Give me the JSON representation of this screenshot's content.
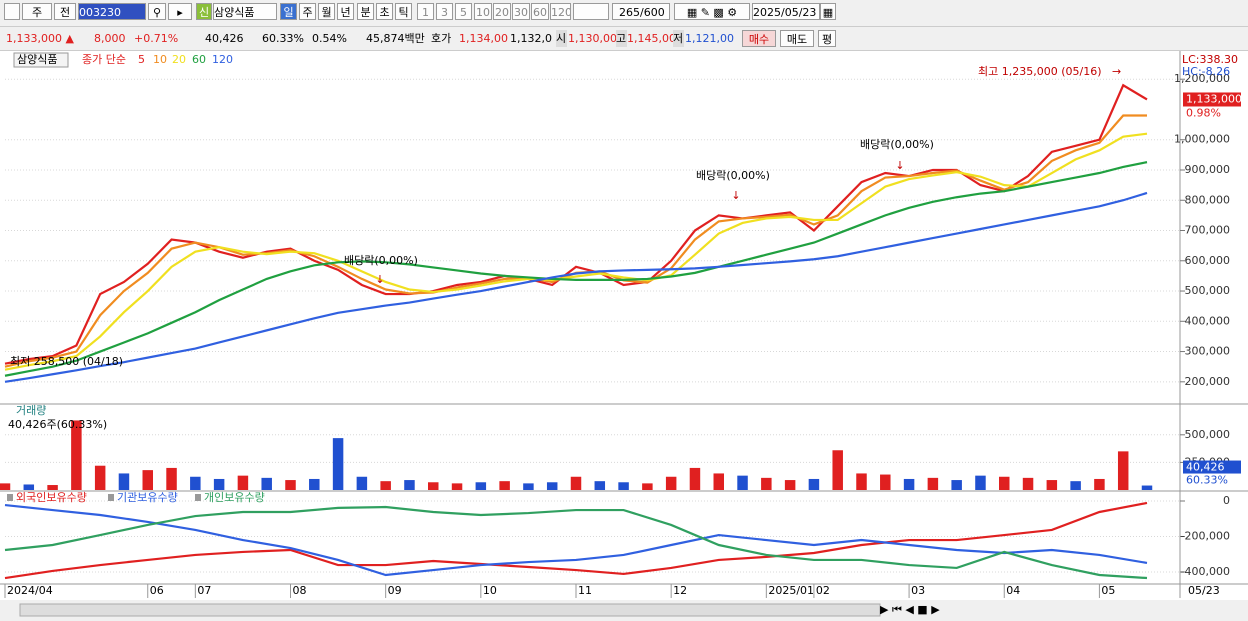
{
  "toolbar": {
    "items": [
      "주",
      "전",
      "003230",
      "신",
      "삼양식품",
      "일",
      "주",
      "월",
      "년",
      "분",
      "초",
      "틱",
      "1",
      "3",
      "5",
      "10",
      "20",
      "30",
      "60",
      "120",
      "265",
      "/600",
      "2025/05/23"
    ]
  },
  "info_bar": {
    "items": [
      "1,133,000 ▲",
      "8,000",
      "+0.71%",
      "40,426",
      "60.33%",
      "0.54%",
      "45,874백만",
      "호가",
      "1,134,00",
      "1,132,0",
      "시",
      "1,130,00",
      "고",
      "1,145,00",
      "저",
      "1,121,00",
      "매수",
      "매도",
      "평"
    ]
  },
  "chart_data": [
    {
      "type": "line",
      "title": "삼양식품",
      "subtitle": "종가 단순",
      "series": [
        {
          "name": "5",
          "color": "#e02020",
          "values": [
            260000,
            275000,
            285000,
            320000,
            490000,
            530000,
            590000,
            670000,
            660000,
            630000,
            610000,
            630000,
            640000,
            600000,
            570000,
            520000,
            490000,
            490000,
            500000,
            520000,
            530000,
            550000,
            540000,
            520000,
            580000,
            560000,
            520000,
            530000,
            600000,
            700000,
            750000,
            740000,
            750000,
            760000,
            700000,
            780000,
            860000,
            890000,
            880000,
            900000,
            900000,
            850000,
            830000,
            880000,
            960000,
            980000,
            1000000,
            1180000,
            1133000
          ]
        },
        {
          "name": "10",
          "color": "#f08c20",
          "values": [
            250000,
            268000,
            280000,
            300000,
            420000,
            500000,
            560000,
            640000,
            660000,
            645000,
            620000,
            625000,
            635000,
            615000,
            580000,
            540000,
            505000,
            492000,
            495000,
            512000,
            525000,
            540000,
            543000,
            530000,
            560000,
            565000,
            535000,
            528000,
            575000,
            670000,
            730000,
            740000,
            745000,
            752000,
            720000,
            750000,
            830000,
            875000,
            880000,
            890000,
            898000,
            865000,
            835000,
            860000,
            930000,
            965000,
            990000,
            1080000,
            1080000
          ]
        },
        {
          "name": "20",
          "color": "#f0e020",
          "values": [
            240000,
            255000,
            268000,
            285000,
            350000,
            430000,
            500000,
            580000,
            630000,
            645000,
            630000,
            622000,
            630000,
            625000,
            600000,
            565000,
            530000,
            505000,
            497000,
            505000,
            518000,
            532000,
            540000,
            537000,
            548000,
            558000,
            545000,
            535000,
            552000,
            620000,
            690000,
            725000,
            740000,
            745000,
            735000,
            735000,
            790000,
            845000,
            870000,
            882000,
            893000,
            878000,
            850000,
            845000,
            890000,
            935000,
            965000,
            1010000,
            1020000
          ]
        },
        {
          "name": "60",
          "color": "#20a040",
          "values": [
            220000,
            235000,
            250000,
            270000,
            300000,
            330000,
            360000,
            395000,
            430000,
            470000,
            505000,
            540000,
            565000,
            585000,
            595000,
            598000,
            595000,
            588000,
            578000,
            568000,
            558000,
            550000,
            545000,
            540000,
            537000,
            537000,
            537000,
            540000,
            548000,
            560000,
            580000,
            600000,
            620000,
            640000,
            660000,
            690000,
            720000,
            750000,
            775000,
            795000,
            810000,
            822000,
            830000,
            845000,
            860000,
            875000,
            890000,
            910000,
            926000
          ]
        },
        {
          "name": "120",
          "color": "#3060e0",
          "values": [
            200000,
            212000,
            225000,
            238000,
            252000,
            265000,
            280000,
            295000,
            310000,
            330000,
            350000,
            370000,
            390000,
            410000,
            428000,
            440000,
            452000,
            462000,
            475000,
            488000,
            500000,
            515000,
            530000,
            545000,
            558000,
            565000,
            568000,
            570000,
            572000,
            575000,
            580000,
            586000,
            592000,
            598000,
            605000,
            615000,
            630000,
            645000,
            660000,
            675000,
            690000,
            705000,
            720000,
            735000,
            750000,
            765000,
            780000,
            800000,
            824000
          ]
        }
      ],
      "ylim": [
        130000,
        1280000
      ],
      "yticks": [
        {
          "value": 200000,
          "label": "200,000"
        },
        {
          "value": 300000,
          "label": "300,000"
        },
        {
          "value": 400000,
          "label": "400,000"
        },
        {
          "value": 500000,
          "label": "500,000"
        },
        {
          "value": 600000,
          "label": "600,000"
        },
        {
          "value": 700000,
          "label": "700,000"
        },
        {
          "value": 800000,
          "label": "800,000"
        },
        {
          "value": 900000,
          "label": "900,000"
        },
        {
          "value": 1000000,
          "label": "1,000,000"
        },
        {
          "value": 1200000,
          "label": "1,200,000"
        }
      ],
      "annotations": [
        "최고 1,235,000 (05/16)",
        "최저 258,500 (04/18)",
        "배당락(0,00%)",
        "배당락(0,00%)",
        "배당락(0,00%)"
      ],
      "lc_label": "LC:338.30",
      "hc_label": "HC:-8.26",
      "last_price": {
        "value": 1133000,
        "label": "1,133,000"
      },
      "change_label": "0.98%"
    },
    {
      "type": "bar",
      "title": "거래량",
      "subtitle": "40,426주(60.33%)",
      "values": [
        60000,
        50000,
        45000,
        630000,
        220000,
        150000,
        180000,
        200000,
        120000,
        100000,
        130000,
        110000,
        90000,
        100000,
        470000,
        120000,
        80000,
        90000,
        70000,
        60000,
        70000,
        80000,
        60000,
        70000,
        120000,
        80000,
        70000,
        60000,
        120000,
        200000,
        150000,
        130000,
        110000,
        90000,
        100000,
        360000,
        150000,
        140000,
        100000,
        110000,
        90000,
        130000,
        120000,
        110000,
        90000,
        80000,
        100000,
        350000,
        40426
      ],
      "colors": [
        "#e02020",
        "#2050d0",
        "#e02020",
        "#e02020",
        "#e02020",
        "#2050d0",
        "#e02020",
        "#e02020",
        "#2050d0",
        "#2050d0",
        "#e02020",
        "#2050d0",
        "#e02020",
        "#2050d0",
        "#2050d0",
        "#2050d0",
        "#e02020",
        "#2050d0",
        "#e02020",
        "#e02020",
        "#2050d0",
        "#e02020",
        "#2050d0",
        "#2050d0",
        "#e02020",
        "#2050d0",
        "#2050d0",
        "#e02020",
        "#e02020",
        "#e02020",
        "#e02020",
        "#2050d0",
        "#e02020",
        "#e02020",
        "#2050d0",
        "#e02020",
        "#e02020",
        "#e02020",
        "#2050d0",
        "#e02020",
        "#2050d0",
        "#2050d0",
        "#e02020",
        "#e02020",
        "#e02020",
        "#2050d0",
        "#e02020",
        "#e02020",
        "#2050d0"
      ],
      "ylim": [
        0,
        770000
      ],
      "yticks": [
        {
          "value": 250000,
          "label": "250,000"
        },
        {
          "value": 500000,
          "label": "500,000"
        }
      ],
      "last_volume": {
        "value": 40426,
        "label": "40,426"
      },
      "last_ratio": "60.33%"
    },
    {
      "type": "line",
      "categories": [
        "2024/04",
        null,
        null,
        "06",
        "07",
        null,
        "08",
        null,
        "09",
        null,
        "10",
        null,
        "11",
        null,
        "12",
        null,
        "2025/01",
        "02",
        null,
        "03",
        null,
        "04",
        null,
        "05",
        null
      ],
      "series": [
        {
          "name": "외국인보유수량",
          "color": "#e02020",
          "values": [
            -434000,
            -394000,
            -361000,
            -332000,
            -304000,
            -287000,
            -276000,
            -361000,
            -361000,
            -338000,
            -355000,
            -372000,
            -389000,
            -411000,
            -377000,
            -332000,
            -315000,
            -293000,
            -248000,
            -220000,
            -220000,
            -192000,
            -163000,
            -62000,
            -11000
          ]
        },
        {
          "name": "기관보유수량",
          "color": "#3060e0",
          "values": [
            -23000,
            -51000,
            -79000,
            -118000,
            -163000,
            -220000,
            -265000,
            -332000,
            -417000,
            -389000,
            -361000,
            -344000,
            -332000,
            -304000,
            -248000,
            -192000,
            -220000,
            -248000,
            -220000,
            -248000,
            -276000,
            -293000,
            -276000,
            -304000,
            -349000
          ]
        },
        {
          "name": "개인보유수량",
          "color": "#30a060",
          "values": [
            -276000,
            -248000,
            -192000,
            -135000,
            -85000,
            -62000,
            -62000,
            -39000,
            -34000,
            -62000,
            -79000,
            -68000,
            -51000,
            -51000,
            -135000,
            -248000,
            -304000,
            -332000,
            -332000,
            -361000,
            -377000,
            -287000,
            -361000,
            -417000,
            -434000
          ]
        }
      ],
      "ylim": [
        -462000,
        45000
      ],
      "yticks": [
        0,
        {
          "value": -200000,
          "label": "-200,000"
        },
        {
          "value": -400000,
          "label": "-400,000"
        }
      ],
      "end_label": "05/23"
    }
  ]
}
